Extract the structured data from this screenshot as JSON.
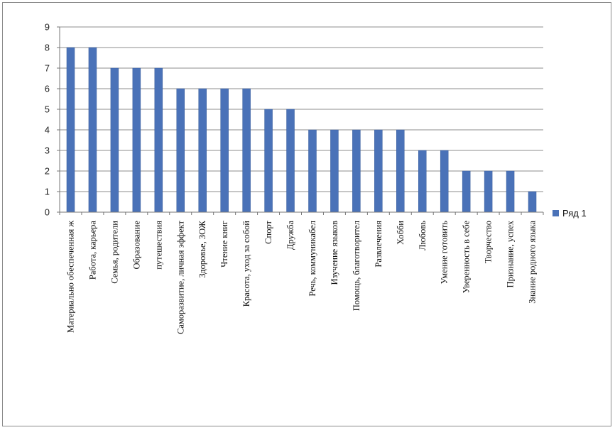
{
  "chart_data": {
    "type": "bar",
    "categories": [
      "Материально обеспеченная ж",
      "Работа, карьера",
      "Семья, родители",
      "Образование",
      "путешествия",
      "Саморазвитие, личная эффект",
      "Здоровье, ЗОЖ",
      "Чтение книг",
      "Красота, уход за собой",
      "Спорт",
      "Дружба",
      "Речь, коммуникабел",
      "Изучение языков",
      "Помощь, благотворител",
      "Развлечения",
      "Хобби",
      "Любовь",
      "Умение готовить",
      "Уверенность в себе",
      "Творчество",
      "Признание, успех",
      "Знание родного языка"
    ],
    "series": [
      {
        "name": "Ряд 1",
        "color": "#4a72b8",
        "values": [
          8,
          8,
          7,
          7,
          7,
          6,
          6,
          6,
          6,
          5,
          5,
          4,
          4,
          4,
          4,
          4,
          3,
          3,
          2,
          2,
          2,
          1
        ]
      }
    ],
    "ylim": [
      0,
      9
    ],
    "yticks": [
      "0",
      "1",
      "2",
      "3",
      "4",
      "5",
      "6",
      "7",
      "8",
      "9"
    ],
    "grid": true,
    "legend": "right"
  }
}
